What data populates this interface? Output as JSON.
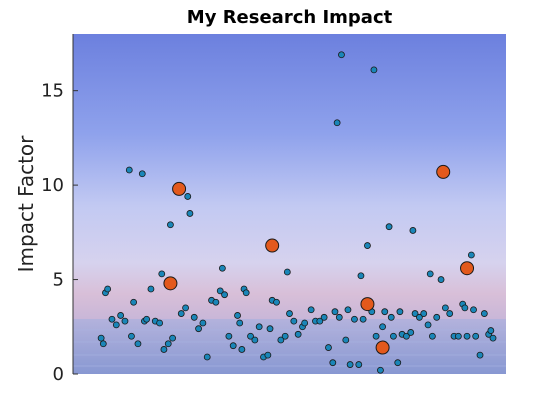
{
  "chart_data": {
    "type": "scatter",
    "title": "My Research Impact",
    "xlabel": "",
    "ylabel": "Impact Factor",
    "xlim": [
      0,
      100
    ],
    "ylim": [
      0,
      18
    ],
    "yticks": [
      0,
      5,
      10,
      15
    ],
    "yticklabels": [
      "0",
      "5",
      "10",
      "15"
    ],
    "xticks": [],
    "grid": false,
    "colors": {
      "small_points": "#1a86b8",
      "highlight_points": "#e3591c",
      "marker_edge": "#1a1a1a",
      "sky_top": "#6d83df",
      "sky_mid": "#c5ccf3",
      "horizon": "#d8c0d8",
      "water": "#8f9fd6"
    },
    "series": [
      {
        "marker": "small",
        "points": [
          [
            6.5,
            1.9
          ],
          [
            7,
            1.6
          ],
          [
            7.5,
            4.3
          ],
          [
            8,
            4.5
          ],
          [
            9,
            2.9
          ],
          [
            10,
            2.6
          ],
          [
            11,
            3.1
          ],
          [
            12,
            2.8
          ],
          [
            13,
            10.8
          ],
          [
            13.5,
            2.0
          ],
          [
            14,
            3.8
          ],
          [
            15,
            1.6
          ],
          [
            16,
            10.6
          ],
          [
            16.5,
            2.8
          ],
          [
            17,
            2.9
          ],
          [
            18,
            4.5
          ],
          [
            19,
            2.8
          ],
          [
            20,
            2.7
          ],
          [
            20.5,
            5.3
          ],
          [
            21,
            1.3
          ],
          [
            22,
            1.6
          ],
          [
            22.5,
            7.9
          ],
          [
            23,
            1.9
          ],
          [
            25,
            3.2
          ],
          [
            26,
            3.5
          ],
          [
            26.5,
            9.4
          ],
          [
            27,
            8.5
          ],
          [
            28,
            3.0
          ],
          [
            29,
            2.4
          ],
          [
            30,
            2.7
          ],
          [
            31,
            0.9
          ],
          [
            32,
            3.9
          ],
          [
            33,
            3.8
          ],
          [
            34,
            4.4
          ],
          [
            34.5,
            5.6
          ],
          [
            35,
            4.2
          ],
          [
            36,
            2.0
          ],
          [
            37,
            1.5
          ],
          [
            38,
            3.1
          ],
          [
            38.5,
            2.7
          ],
          [
            39,
            1.3
          ],
          [
            39.5,
            4.5
          ],
          [
            40,
            4.3
          ],
          [
            41,
            2.0
          ],
          [
            42,
            1.8
          ],
          [
            43,
            2.5
          ],
          [
            44,
            0.9
          ],
          [
            45,
            1.0
          ],
          [
            45.5,
            2.4
          ],
          [
            46,
            3.9
          ],
          [
            47,
            3.8
          ],
          [
            48,
            1.8
          ],
          [
            49,
            2.0
          ],
          [
            49.5,
            5.4
          ],
          [
            50,
            3.2
          ],
          [
            51,
            2.8
          ],
          [
            52,
            2.1
          ],
          [
            53,
            2.5
          ],
          [
            53.5,
            2.7
          ],
          [
            55,
            3.4
          ],
          [
            56,
            2.8
          ],
          [
            57,
            2.8
          ],
          [
            58,
            3.0
          ],
          [
            59,
            1.4
          ],
          [
            60,
            0.6
          ],
          [
            60.5,
            3.3
          ],
          [
            61,
            13.3
          ],
          [
            61.5,
            3.0
          ],
          [
            62,
            16.9
          ],
          [
            63,
            1.8
          ],
          [
            63.5,
            3.4
          ],
          [
            64,
            0.5
          ],
          [
            65,
            2.9
          ],
          [
            66,
            0.5
          ],
          [
            66.5,
            5.2
          ],
          [
            67,
            2.9
          ],
          [
            68,
            6.8
          ],
          [
            69,
            3.3
          ],
          [
            69.5,
            16.1
          ],
          [
            70,
            2.0
          ],
          [
            71,
            0.2
          ],
          [
            71.5,
            2.5
          ],
          [
            72,
            3.3
          ],
          [
            73,
            7.8
          ],
          [
            73.5,
            3.0
          ],
          [
            74,
            2.0
          ],
          [
            75,
            0.6
          ],
          [
            75.5,
            3.3
          ],
          [
            76,
            2.1
          ],
          [
            77,
            2.0
          ],
          [
            78,
            2.2
          ],
          [
            78.5,
            7.6
          ],
          [
            79,
            3.2
          ],
          [
            80,
            3.0
          ],
          [
            81,
            3.2
          ],
          [
            82,
            2.6
          ],
          [
            82.5,
            5.3
          ],
          [
            83,
            2.0
          ],
          [
            84,
            3.0
          ],
          [
            85,
            5.0
          ],
          [
            86,
            3.5
          ],
          [
            87,
            3.2
          ],
          [
            88,
            2.0
          ],
          [
            89,
            2.0
          ],
          [
            90,
            3.7
          ],
          [
            90.5,
            3.5
          ],
          [
            91,
            2.0
          ],
          [
            92,
            6.3
          ],
          [
            92.5,
            3.4
          ],
          [
            93,
            2.0
          ],
          [
            94,
            1.0
          ],
          [
            95,
            3.2
          ],
          [
            96,
            2.1
          ],
          [
            96.5,
            2.3
          ],
          [
            97,
            1.9
          ]
        ]
      },
      {
        "marker": "large",
        "points": [
          [
            22.5,
            4.8
          ],
          [
            24.5,
            9.8
          ],
          [
            46,
            6.8
          ],
          [
            68,
            3.7
          ],
          [
            71.5,
            1.4
          ],
          [
            85.5,
            10.7
          ],
          [
            91,
            5.6
          ]
        ]
      }
    ]
  }
}
